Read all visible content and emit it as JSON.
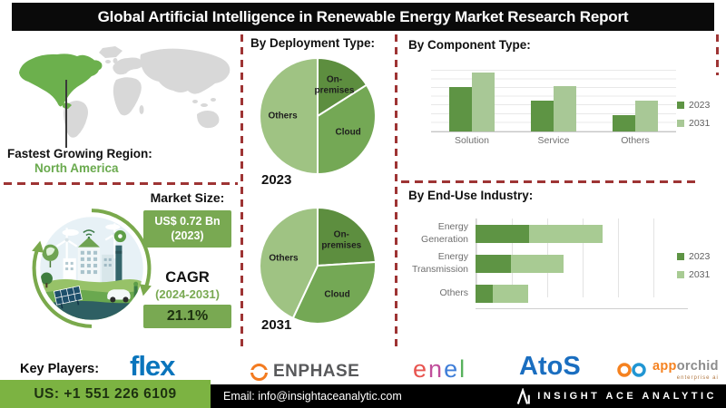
{
  "header": {
    "title": "Global Artificial Intelligence in Renewable Energy Market Research Report"
  },
  "region": {
    "label": "Fastest Growing Region:",
    "value": "North America"
  },
  "market": {
    "size_label": "Market Size:",
    "size_value": "US$ 0.72 Bn",
    "size_year": "(2023)",
    "cagr_label": "CAGR",
    "cagr_period": "(2024-2031)",
    "cagr_value": "21.1%"
  },
  "chart_data": [
    {
      "id": "deployment-2023",
      "type": "pie",
      "title": "By Deployment Type:",
      "year_label": "2023",
      "labels": [
        "On-premises",
        "Cloud",
        "Others"
      ],
      "values": [
        16,
        34,
        50
      ],
      "colors": [
        "#5d8e3f",
        "#74a855",
        "#9fc383"
      ],
      "legend_position": "none"
    },
    {
      "id": "deployment-2031",
      "type": "pie",
      "title": "By Deployment Type:",
      "year_label": "2031",
      "labels": [
        "On-premises",
        "Cloud",
        "Others"
      ],
      "values": [
        24,
        33,
        43
      ],
      "colors": [
        "#5d8e3f",
        "#74a855",
        "#9fc383"
      ],
      "legend_position": "none"
    },
    {
      "id": "component",
      "type": "bar",
      "title": "By Component Type:",
      "categories": [
        "Solution",
        "Service",
        "Others"
      ],
      "series": [
        {
          "name": "2023",
          "color": "#5e9444",
          "values": [
            6.4,
            4.4,
            2.4
          ]
        },
        {
          "name": "2031",
          "color": "#a8c896",
          "values": [
            8.5,
            6.5,
            4.4
          ]
        }
      ],
      "ylim": [
        0,
        10
      ],
      "grid": true,
      "legend_position": "right"
    },
    {
      "id": "end-use",
      "type": "bar-horizontal-stacked",
      "title": "By End-Use Industry:",
      "categories": [
        "Energy Generation",
        "Energy Transmission",
        "Others"
      ],
      "series": [
        {
          "name": "2023",
          "color": "#5e9444",
          "values": [
            1.5,
            1.0,
            0.5
          ]
        },
        {
          "name": "2031",
          "color": "#a8cb93",
          "values": [
            2.1,
            1.5,
            1.0
          ]
        }
      ],
      "xlim": [
        0,
        6
      ],
      "grid": true,
      "legend_position": "right"
    }
  ],
  "key_players": {
    "label": "Key Players:",
    "brands": [
      {
        "id": "flex",
        "name": "flex",
        "color": "#0a75bc"
      },
      {
        "id": "enphase",
        "name": "ENPHASE",
        "color": "#58595b",
        "icon_color": "#f37b20"
      },
      {
        "id": "enel",
        "parts": [
          {
            "text": "e",
            "color": "#e8544f"
          },
          {
            "text": "n",
            "color": "#c04e9b"
          },
          {
            "text": "e",
            "color": "#3f7ed8"
          },
          {
            "text": "l",
            "color": "#57b15c"
          }
        ]
      },
      {
        "id": "atos",
        "name": "AtoS",
        "color": "#1a6ec0"
      },
      {
        "id": "apporchid",
        "parts": [
          {
            "text": "app",
            "color": "#f58220"
          },
          {
            "text": "orchid",
            "color": "#8c8c8c"
          }
        ],
        "subtext": "enterprise ai",
        "icon_colors": [
          "#f58220",
          "#2196d3"
        ]
      }
    ]
  },
  "contact": {
    "phone": "US: +1 551 226 6109",
    "email": "Email: info@insightaceanalytic.com",
    "company": "INSIGHT ACE ANALYTIC"
  },
  "colors": {
    "accent_green_dark": "#5d8e3f",
    "accent_green_mid": "#74a855",
    "accent_green_light": "#9fc383",
    "map_highlight": "#6cb04d",
    "badge_green": "#79a952",
    "dashed_line_red": "#9e3434",
    "phone_bar_green": "#7cb342",
    "title_bar_black": "#0a0a0a"
  }
}
